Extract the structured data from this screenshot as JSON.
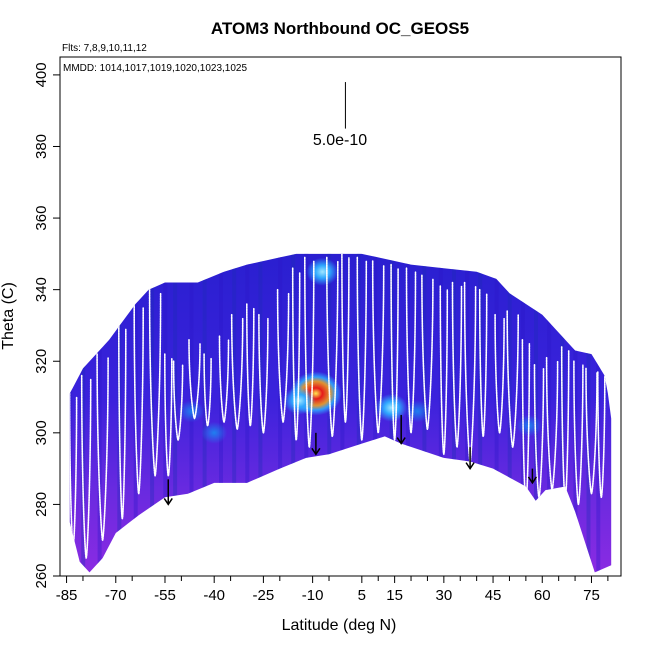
{
  "chart_data": {
    "type": "heatmap",
    "title": "ATOM3 Northbound OC_GEOS5",
    "flights_note": "Flts: 7,8,9,10,11,12",
    "dates_note": "MMDD: 1014,1017,1019,1020,1023,1025",
    "xlabel": "Latitude (deg N)",
    "ylabel": "Theta (C)",
    "xlim": [
      -87,
      84
    ],
    "ylim": [
      260,
      405
    ],
    "x_major_ticks": [
      -85,
      -70,
      -55,
      -40,
      -25,
      -10,
      5,
      15,
      30,
      45,
      60,
      75
    ],
    "x_minor_ticks": [
      -80,
      -65,
      -50,
      -35,
      -20,
      -5,
      10,
      20,
      25,
      35,
      40,
      50,
      55,
      65,
      70,
      80
    ],
    "y_ticks": [
      260,
      280,
      300,
      320,
      340,
      360,
      380,
      400
    ],
    "scale_label": "5.0e-10",
    "colors": {
      "background_field": "#3a14d8",
      "low_field": "#8a2be2",
      "mid_field": "#1a4fd0",
      "high_blue": "#2fa8ff",
      "hot_red": "#e61a1a",
      "hot_orange": "#f0a020",
      "hot_yellow": "#ffe850",
      "profile_trace": "#ffffff"
    },
    "envelope_top": [
      [
        -84,
        311
      ],
      [
        -80,
        318
      ],
      [
        -76,
        322
      ],
      [
        -72,
        326
      ],
      [
        -68,
        331
      ],
      [
        -64,
        336
      ],
      [
        -60,
        340
      ],
      [
        -55,
        342
      ],
      [
        -45,
        342
      ],
      [
        -37,
        345
      ],
      [
        -30,
        347
      ],
      [
        -20,
        349
      ],
      [
        -15,
        350
      ],
      [
        -5,
        350
      ],
      [
        0,
        350
      ],
      [
        5,
        350
      ],
      [
        10,
        349
      ],
      [
        15,
        348
      ],
      [
        20,
        347
      ],
      [
        30,
        346
      ],
      [
        40,
        345
      ],
      [
        46,
        343
      ],
      [
        50,
        339
      ],
      [
        55,
        336
      ],
      [
        60,
        333
      ],
      [
        65,
        328
      ],
      [
        70,
        323
      ],
      [
        75,
        322
      ],
      [
        79,
        316
      ],
      [
        80,
        311
      ],
      [
        81,
        304
      ]
    ],
    "envelope_bottom": [
      [
        81,
        263
      ],
      [
        76,
        261
      ],
      [
        70,
        278
      ],
      [
        67,
        285
      ],
      [
        61,
        284
      ],
      [
        58,
        281
      ],
      [
        55,
        285
      ],
      [
        45,
        290
      ],
      [
        38,
        292
      ],
      [
        30,
        293
      ],
      [
        17,
        297
      ],
      [
        12,
        299
      ],
      [
        5,
        297
      ],
      [
        -5,
        294
      ],
      [
        -12,
        293
      ],
      [
        -20,
        290
      ],
      [
        -30,
        286
      ],
      [
        -40,
        286
      ],
      [
        -48,
        283
      ],
      [
        -55,
        282
      ],
      [
        -63,
        277
      ],
      [
        -70,
        272
      ],
      [
        -74,
        265
      ],
      [
        -78,
        261
      ],
      [
        -81,
        264
      ],
      [
        -84,
        275
      ]
    ],
    "hotspots": [
      {
        "lat": -9,
        "theta": 311,
        "intensity": "high"
      },
      {
        "lat": -14,
        "theta": 309,
        "intensity": "medium"
      },
      {
        "lat": 14,
        "theta": 307,
        "intensity": "medium"
      },
      {
        "lat": -7,
        "theta": 345,
        "intensity": "medium"
      },
      {
        "lat": -47,
        "theta": 306,
        "intensity": "low"
      },
      {
        "lat": 56,
        "theta": 302,
        "intensity": "low"
      },
      {
        "lat": -40,
        "theta": 300,
        "intensity": "low"
      },
      {
        "lat": 22,
        "theta": 306,
        "intensity": "low"
      }
    ],
    "flight_profiles": [
      {
        "lat": -83,
        "top": 311,
        "bottom": 268
      },
      {
        "lat": -79,
        "top": 316,
        "bottom": 265
      },
      {
        "lat": -74,
        "top": 322,
        "bottom": 270
      },
      {
        "lat": -68,
        "top": 330,
        "bottom": 276
      },
      {
        "lat": -63,
        "top": 336,
        "bottom": 283
      },
      {
        "lat": -58,
        "top": 340,
        "bottom": 288
      },
      {
        "lat": -54,
        "top": 322,
        "bottom": 288
      },
      {
        "lat": -51,
        "top": 320,
        "bottom": 298
      },
      {
        "lat": -46,
        "top": 326,
        "bottom": 304
      },
      {
        "lat": -42,
        "top": 322,
        "bottom": 302
      },
      {
        "lat": -37,
        "top": 327,
        "bottom": 303
      },
      {
        "lat": -33,
        "top": 333,
        "bottom": 301
      },
      {
        "lat": -29,
        "top": 336,
        "bottom": 302
      },
      {
        "lat": -25,
        "top": 333,
        "bottom": 300
      },
      {
        "lat": -19,
        "top": 340,
        "bottom": 303
      },
      {
        "lat": -15,
        "top": 346,
        "bottom": 298
      },
      {
        "lat": -11,
        "top": 349,
        "bottom": 296
      },
      {
        "lat": -4,
        "top": 349,
        "bottom": 299
      },
      {
        "lat": 0,
        "top": 350,
        "bottom": 303
      },
      {
        "lat": 5,
        "top": 349,
        "bottom": 298
      },
      {
        "lat": 10,
        "top": 348,
        "bottom": 300
      },
      {
        "lat": 15,
        "top": 347,
        "bottom": 298
      },
      {
        "lat": 20,
        "top": 346,
        "bottom": 300
      },
      {
        "lat": 25,
        "top": 344,
        "bottom": 301
      },
      {
        "lat": 30,
        "top": 341,
        "bottom": 294
      },
      {
        "lat": 34,
        "top": 342,
        "bottom": 296
      },
      {
        "lat": 38,
        "top": 342,
        "bottom": 292
      },
      {
        "lat": 42,
        "top": 340,
        "bottom": 299
      },
      {
        "lat": 47,
        "top": 333,
        "bottom": 300
      },
      {
        "lat": 51,
        "top": 334,
        "bottom": 296
      },
      {
        "lat": 55,
        "top": 326,
        "bottom": 280
      },
      {
        "lat": 59,
        "top": 319,
        "bottom": 282
      },
      {
        "lat": 63,
        "top": 321,
        "bottom": 284
      },
      {
        "lat": 67,
        "top": 324,
        "bottom": 281
      },
      {
        "lat": 71,
        "top": 320,
        "bottom": 280
      },
      {
        "lat": 75,
        "top": 318,
        "bottom": 283
      },
      {
        "lat": 78,
        "top": 317,
        "bottom": 282
      }
    ],
    "arrows": [
      {
        "lat": -54,
        "theta_start": 287,
        "theta_end": 280
      },
      {
        "lat": -9,
        "theta_start": 300,
        "theta_end": 294
      },
      {
        "lat": 17,
        "theta_start": 305,
        "theta_end": 297
      },
      {
        "lat": 38,
        "theta_start": 296,
        "theta_end": 290
      },
      {
        "lat": 57,
        "theta_start": 290,
        "theta_end": 286
      }
    ],
    "scale_bar": {
      "lat": 0,
      "theta_top": 398,
      "theta_bottom": 385
    }
  }
}
